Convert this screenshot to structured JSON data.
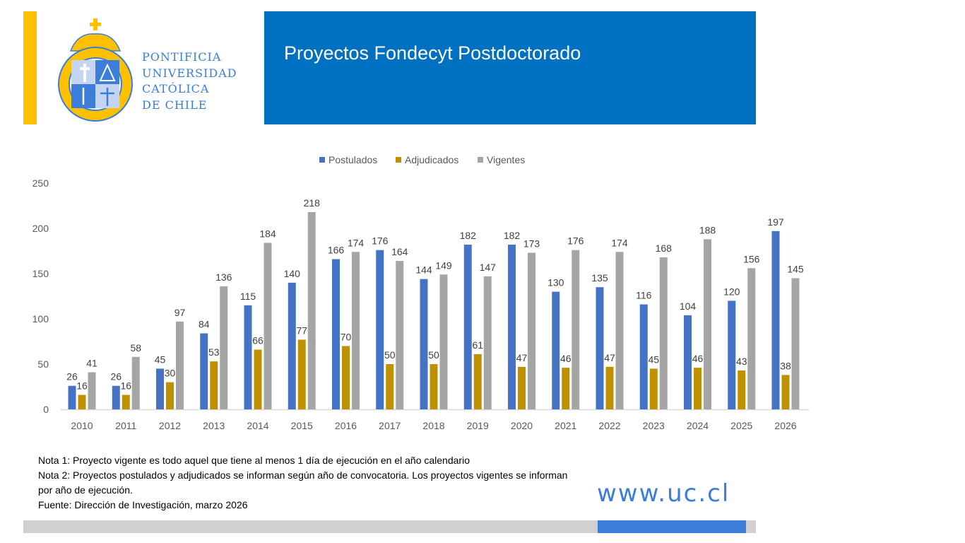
{
  "header": {
    "title": "Proyectos Fondecyt Postdoctorado"
  },
  "logo": {
    "lines": [
      "PONTIFICIA",
      "UNIVERSIDAD",
      "CATÓLICA",
      "DE CHILE"
    ],
    "seal_text": "PONTIFICIA UNIVERSIDAD CATÓLICA DE CHILE"
  },
  "notes": [
    "Nota 1: Proyecto vigente es todo aquel que tiene al menos 1 día de ejecución en el año calendario",
    "Nota 2: Proyectos postulados y adjudicados se informan según año de convocatoria. Los proyectos vigentes se informan por año de ejecución.",
    "Fuente: Dirección de Investigación, marzo 2026"
  ],
  "url": "www.uc.cl",
  "colors": {
    "brand_blue": "#0070C0",
    "accent_yellow": "#FFC000",
    "postulados": "#4472C4",
    "adjudicados": "#BF9000",
    "vigentes": "#A5A5A5"
  },
  "chart_data": {
    "type": "bar",
    "title": "",
    "xlabel": "",
    "ylabel": "",
    "ylim": [
      0,
      250
    ],
    "yticks": [
      0,
      50,
      100,
      150,
      200,
      250
    ],
    "grid": false,
    "legend_position": "top-center",
    "categories": [
      "2010",
      "2011",
      "2012",
      "2013",
      "2014",
      "2015",
      "2016",
      "2017",
      "2018",
      "2019",
      "2020",
      "2021",
      "2022",
      "2023",
      "2024",
      "2025",
      "2026"
    ],
    "series": [
      {
        "name": "Postulados",
        "color": "#4472C4",
        "values": [
          26,
          26,
          45,
          84,
          115,
          140,
          166,
          176,
          144,
          182,
          182,
          130,
          135,
          116,
          104,
          120,
          197
        ]
      },
      {
        "name": "Adjudicados",
        "color": "#BF9000",
        "values": [
          16,
          16,
          30,
          53,
          66,
          77,
          70,
          50,
          50,
          61,
          47,
          46,
          47,
          45,
          46,
          43,
          38
        ]
      },
      {
        "name": "Vigentes",
        "color": "#A5A5A5",
        "values": [
          41,
          58,
          97,
          136,
          184,
          218,
          174,
          164,
          149,
          147,
          173,
          176,
          174,
          168,
          188,
          156,
          145
        ]
      }
    ]
  }
}
